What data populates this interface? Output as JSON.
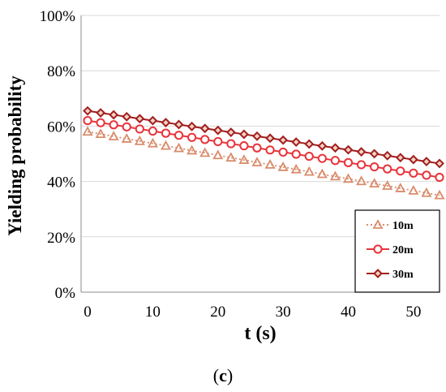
{
  "chart_data": {
    "type": "line",
    "xlabel": "t (s)",
    "ylabel": "Yielding probability",
    "caption_prefix": "(",
    "caption_letter": "c",
    "caption_suffix": ")",
    "xlim": [
      -1,
      54
    ],
    "ylim": [
      0,
      100
    ],
    "x_ticks": [
      0,
      10,
      20,
      30,
      40,
      50
    ],
    "y_ticks": [
      0,
      20,
      40,
      60,
      80,
      100
    ],
    "y_tick_labels": [
      "0%",
      "20%",
      "40%",
      "60%",
      "80%",
      "100%"
    ],
    "grid": true,
    "legend_position": "bottom-right",
    "series": [
      {
        "name": "10m",
        "marker": "triangle",
        "line_style": "dotted",
        "color": "#D98C6C",
        "y_start": 58,
        "y_end": 35
      },
      {
        "name": "20m",
        "marker": "circle",
        "line_style": "solid",
        "color": "#E8343B",
        "y_start": 62,
        "y_end": 41.5
      },
      {
        "name": "30m",
        "marker": "diamond",
        "line_style": "solid",
        "color": "#A21E1E",
        "y_start": 65.5,
        "y_end": 46.5
      }
    ],
    "x_points": [
      0,
      2,
      4,
      6,
      8,
      10,
      12,
      14,
      16,
      18,
      20,
      22,
      24,
      26,
      28,
      30,
      32,
      34,
      36,
      38,
      40,
      42,
      44,
      46,
      48,
      50,
      52,
      54
    ]
  }
}
